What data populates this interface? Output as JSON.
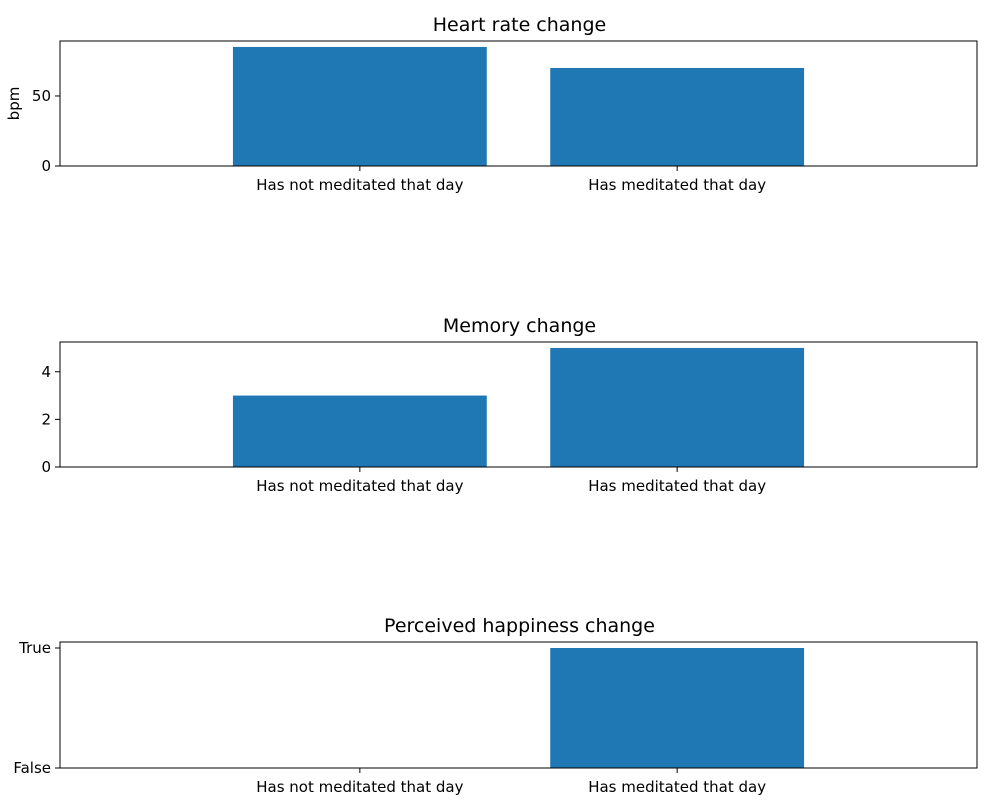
{
  "chart_data": [
    {
      "type": "bar",
      "title": "Heart rate change",
      "xlabel": "",
      "ylabel": "bpm",
      "categories": [
        "Has not meditated that day",
        "Has meditated that day"
      ],
      "values": [
        85,
        70
      ],
      "ylim": [
        0,
        89.25
      ],
      "yticks": [
        0,
        50
      ],
      "ytick_labels": [
        "0",
        "50"
      ],
      "color": "#1f77b4",
      "grid": false
    },
    {
      "type": "bar",
      "title": "Memory change",
      "xlabel": "",
      "ylabel": "",
      "categories": [
        "Has not meditated that day",
        "Has meditated that day"
      ],
      "values": [
        3,
        5
      ],
      "ylim": [
        0,
        5.25
      ],
      "yticks": [
        0,
        2,
        4
      ],
      "ytick_labels": [
        "0",
        "2",
        "4"
      ],
      "color": "#1f77b4",
      "grid": false
    },
    {
      "type": "bar",
      "title": "Perceived happiness change",
      "xlabel": "",
      "ylabel": "",
      "categories": [
        "Has not meditated that day",
        "Has meditated that day"
      ],
      "values": [
        0,
        1
      ],
      "ylim": [
        0,
        1.05
      ],
      "yticks": [
        0,
        1
      ],
      "ytick_labels": [
        "False",
        "True"
      ],
      "color": "#1f77b4",
      "grid": false
    }
  ]
}
